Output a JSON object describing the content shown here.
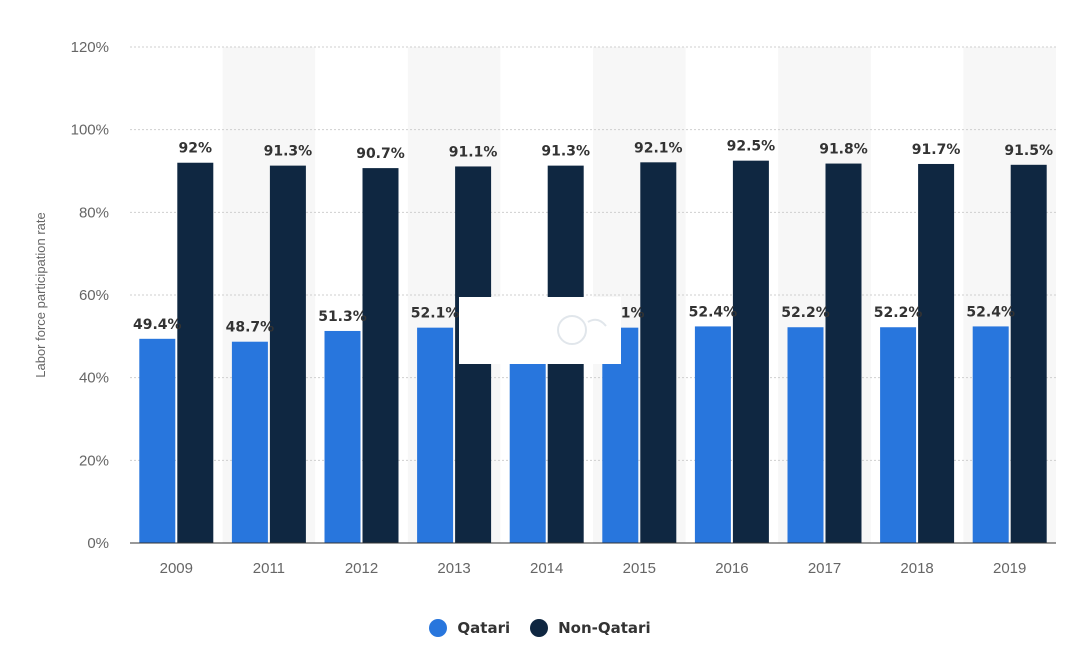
{
  "chart_data": {
    "type": "bar",
    "categories": [
      "2009",
      "2011",
      "2012",
      "2013",
      "2014",
      "2015",
      "2016",
      "2017",
      "2018",
      "2019"
    ],
    "series": [
      {
        "name": "Qatari",
        "color": "#2876dd",
        "values": [
          49.4,
          48.7,
          51.3,
          52.1,
          52.0,
          52.1,
          52.4,
          52.2,
          52.2,
          52.4
        ],
        "labels": [
          "49.4%",
          "48.7%",
          "51.3%",
          "52.1%",
          "",
          "52.1%",
          "52.4%",
          "52.2%",
          "52.2%",
          "52.4%"
        ]
      },
      {
        "name": "Non-Qatari",
        "color": "#0f2741",
        "values": [
          92,
          91.3,
          90.7,
          91.1,
          91.3,
          92.1,
          92.5,
          91.8,
          91.7,
          91.5
        ],
        "labels": [
          "92%",
          "91.3%",
          "90.7%",
          "91.1%",
          "91.3%",
          "92.1%",
          "92.5%",
          "91.8%",
          "91.7%",
          "91.5%"
        ]
      }
    ],
    "ylabel": "Labor force participation rate",
    "ylim": [
      0,
      120
    ],
    "yticks": [
      0,
      20,
      40,
      60,
      80,
      100,
      120
    ],
    "ytick_labels": [
      "0%",
      "20%",
      "40%",
      "60%",
      "80%",
      "100%",
      "120%"
    ],
    "grid": true,
    "legend_position": "bottom-center"
  },
  "legend": {
    "items": [
      {
        "label": "Qatari",
        "color": "#2876dd"
      },
      {
        "label": "Non-Qatari",
        "color": "#0f2741"
      }
    ]
  }
}
